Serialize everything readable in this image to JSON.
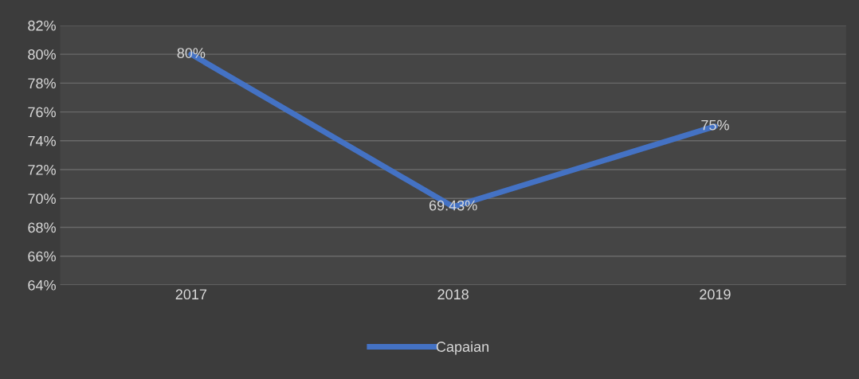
{
  "chart_data": {
    "type": "line",
    "categories": [
      "2017",
      "2018",
      "2019"
    ],
    "series": [
      {
        "name": "Capaian",
        "color": "#4472c4",
        "values": [
          80,
          69.43,
          75
        ],
        "value_labels": [
          "80%",
          "69.43%",
          "75%"
        ]
      }
    ],
    "ylim": [
      64,
      82
    ],
    "yticks": [
      {
        "value": 64,
        "label": "64%"
      },
      {
        "value": 66,
        "label": "66%"
      },
      {
        "value": 68,
        "label": "68%"
      },
      {
        "value": 70,
        "label": "70%"
      },
      {
        "value": 72,
        "label": "72%"
      },
      {
        "value": 74,
        "label": "74%"
      },
      {
        "value": 76,
        "label": "76%"
      },
      {
        "value": 78,
        "label": "78%"
      },
      {
        "value": 80,
        "label": "80%"
      },
      {
        "value": 82,
        "label": "82%"
      }
    ],
    "grid": "y",
    "legend": "bottom",
    "marker": "none",
    "line_style": "solid"
  }
}
